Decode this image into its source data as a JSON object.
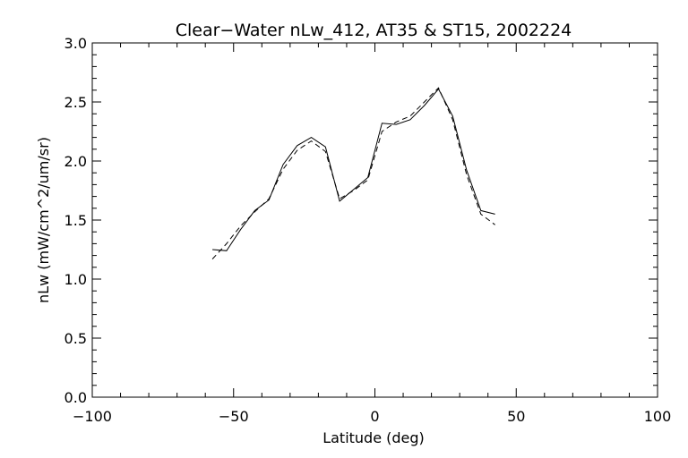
{
  "chart_data": {
    "type": "line",
    "title": "Clear−Water nLw_412, AT35 & ST15, 2002224",
    "xlabel": "Latitude (deg)",
    "ylabel": "nLw (mW/cm^2/um/sr)",
    "xlim": [
      -100,
      100
    ],
    "ylim": [
      0.0,
      3.0
    ],
    "xticks": [
      -100,
      -50,
      0,
      50,
      100
    ],
    "xtick_labels": [
      "−100",
      "−50",
      "0",
      "50",
      "100"
    ],
    "yticks": [
      0.0,
      0.5,
      1.0,
      1.5,
      2.0,
      2.5,
      3.0
    ],
    "ytick_labels": [
      "0.0",
      "0.5",
      "1.0",
      "1.5",
      "2.0",
      "2.5",
      "3.0"
    ],
    "grid": false,
    "legend": "none",
    "series": [
      {
        "style": "solid",
        "x": [
          -57.5,
          -52.5,
          -47.5,
          -42.5,
          -37.5,
          -32.5,
          -27.5,
          -22.5,
          -17.5,
          -12.5,
          -7.5,
          -2.5,
          2.5,
          7.5,
          12.5,
          17.5,
          22.5,
          27.5,
          32.5,
          37.5,
          42.5
        ],
        "y": [
          1.25,
          1.24,
          1.42,
          1.58,
          1.67,
          1.97,
          2.13,
          2.2,
          2.12,
          1.66,
          1.76,
          1.86,
          2.32,
          2.31,
          2.35,
          2.47,
          2.61,
          2.38,
          1.92,
          1.58,
          1.55
        ]
      },
      {
        "style": "dashed",
        "x": [
          -57.5,
          -52.5,
          -47.5,
          -42.5,
          -37.5,
          -32.5,
          -27.5,
          -22.5,
          -17.5,
          -12.5,
          -7.5,
          -2.5,
          2.5,
          7.5,
          12.5,
          17.5,
          22.5,
          27.5,
          32.5,
          37.5,
          42.5
        ],
        "y": [
          1.17,
          1.3,
          1.45,
          1.57,
          1.68,
          1.93,
          2.09,
          2.17,
          2.08,
          1.68,
          1.75,
          1.84,
          2.25,
          2.33,
          2.38,
          2.5,
          2.62,
          2.35,
          1.88,
          1.55,
          1.46
        ]
      }
    ]
  }
}
